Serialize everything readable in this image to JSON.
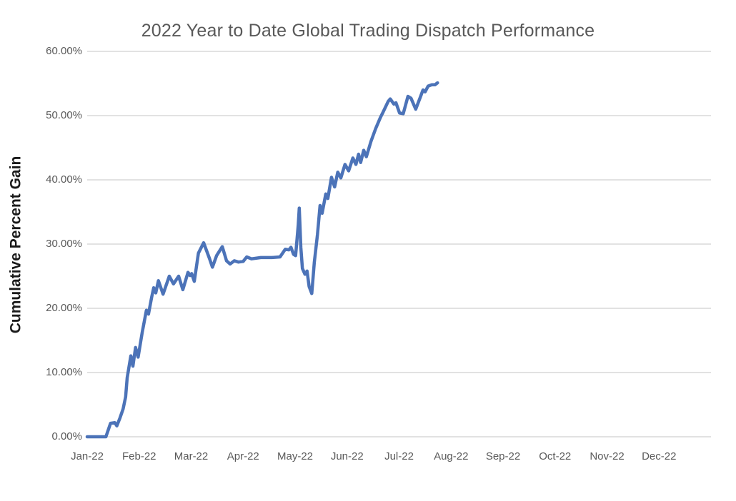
{
  "colors": {
    "background": "#ffffff",
    "title_text": "#595959",
    "tick_text": "#595959",
    "y_axis_title_text": "#1a1a1a",
    "gridline": "#d9d9d9",
    "series_line": "#4c73b8"
  },
  "chart_data": {
    "type": "line",
    "title": "2022 Year to Date Global Trading Dispatch Performance",
    "xlabel": "",
    "ylabel": "Cumulative Percent Gain",
    "legend": "none",
    "grid": "horizontal",
    "x_axis": {
      "unit": "months since Jan-22 (0 = Jan-22 tick)",
      "tick_labels": [
        "Jan-22",
        "Feb-22",
        "Mar-22",
        "Apr-22",
        "May-22",
        "Jun-22",
        "Jul-22",
        "Aug-22",
        "Sep-22",
        "Oct-22",
        "Nov-22",
        "Dec-22"
      ],
      "range": [
        0,
        12
      ]
    },
    "y_axis": {
      "unit": "percent",
      "tick_labels": [
        "0.00%",
        "10.00%",
        "20.00%",
        "30.00%",
        "40.00%",
        "50.00%",
        "60.00%"
      ],
      "min": 0,
      "max": 60,
      "step": 10
    },
    "series": [
      {
        "name": "Cumulative Percent Gain",
        "color": "#4c73b8",
        "points": [
          [
            0.0,
            0.0
          ],
          [
            0.36,
            0.0
          ],
          [
            0.45,
            2.1
          ],
          [
            0.53,
            2.2
          ],
          [
            0.57,
            1.7
          ],
          [
            0.63,
            2.9
          ],
          [
            0.69,
            4.3
          ],
          [
            0.74,
            6.2
          ],
          [
            0.77,
            9.2
          ],
          [
            0.84,
            12.6
          ],
          [
            0.88,
            11.0
          ],
          [
            0.93,
            13.9
          ],
          [
            0.98,
            12.4
          ],
          [
            1.06,
            16.3
          ],
          [
            1.14,
            19.7
          ],
          [
            1.18,
            19.1
          ],
          [
            1.24,
            21.7
          ],
          [
            1.28,
            23.2
          ],
          [
            1.32,
            22.4
          ],
          [
            1.37,
            24.3
          ],
          [
            1.46,
            22.2
          ],
          [
            1.58,
            25.0
          ],
          [
            1.66,
            23.8
          ],
          [
            1.76,
            25.0
          ],
          [
            1.84,
            22.9
          ],
          [
            1.94,
            25.6
          ],
          [
            1.98,
            25.1
          ],
          [
            2.01,
            25.4
          ],
          [
            2.06,
            24.2
          ],
          [
            2.14,
            28.6
          ],
          [
            2.24,
            30.2
          ],
          [
            2.35,
            27.8
          ],
          [
            2.41,
            26.4
          ],
          [
            2.49,
            28.2
          ],
          [
            2.6,
            29.6
          ],
          [
            2.68,
            27.4
          ],
          [
            2.75,
            26.9
          ],
          [
            2.83,
            27.4
          ],
          [
            2.91,
            27.2
          ],
          [
            3.0,
            27.3
          ],
          [
            3.07,
            28.0
          ],
          [
            3.16,
            27.7
          ],
          [
            3.34,
            27.9
          ],
          [
            3.55,
            27.9
          ],
          [
            3.71,
            28.0
          ],
          [
            3.81,
            29.2
          ],
          [
            3.88,
            29.1
          ],
          [
            3.92,
            29.5
          ],
          [
            3.97,
            28.4
          ],
          [
            4.01,
            28.2
          ],
          [
            4.06,
            33.0
          ],
          [
            4.08,
            35.6
          ],
          [
            4.11,
            29.5
          ],
          [
            4.14,
            26.2
          ],
          [
            4.19,
            25.3
          ],
          [
            4.23,
            25.8
          ],
          [
            4.27,
            23.4
          ],
          [
            4.32,
            22.3
          ],
          [
            4.37,
            27.2
          ],
          [
            4.43,
            31.5
          ],
          [
            4.48,
            36.0
          ],
          [
            4.52,
            34.8
          ],
          [
            4.59,
            37.8
          ],
          [
            4.63,
            37.1
          ],
          [
            4.7,
            40.4
          ],
          [
            4.76,
            38.9
          ],
          [
            4.82,
            41.2
          ],
          [
            4.88,
            40.3
          ],
          [
            4.96,
            42.4
          ],
          [
            5.03,
            41.4
          ],
          [
            5.11,
            43.4
          ],
          [
            5.17,
            42.4
          ],
          [
            5.22,
            44.0
          ],
          [
            5.26,
            42.7
          ],
          [
            5.32,
            44.6
          ],
          [
            5.37,
            43.6
          ],
          [
            5.46,
            46.0
          ],
          [
            5.55,
            48.0
          ],
          [
            5.64,
            49.7
          ],
          [
            5.69,
            50.5
          ],
          [
            5.79,
            52.2
          ],
          [
            5.83,
            52.6
          ],
          [
            5.9,
            51.8
          ],
          [
            5.94,
            52.0
          ],
          [
            6.01,
            50.4
          ],
          [
            6.08,
            50.3
          ],
          [
            6.17,
            53.0
          ],
          [
            6.23,
            52.7
          ],
          [
            6.32,
            51.0
          ],
          [
            6.41,
            52.9
          ],
          [
            6.46,
            54.0
          ],
          [
            6.5,
            53.7
          ],
          [
            6.56,
            54.6
          ],
          [
            6.63,
            54.8
          ],
          [
            6.69,
            54.8
          ],
          [
            6.74,
            55.1
          ]
        ]
      }
    ]
  }
}
